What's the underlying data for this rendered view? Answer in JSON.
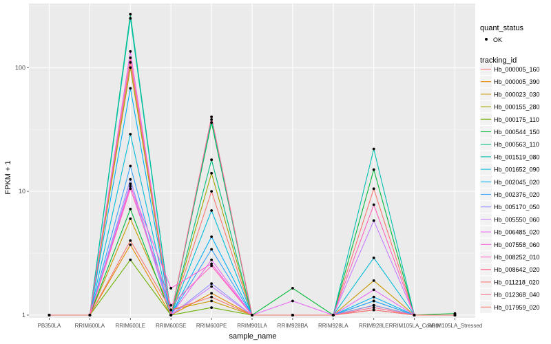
{
  "chart_data": {
    "type": "line",
    "title": "",
    "xlabel": "sample_name",
    "ylabel": "FPKM + 1",
    "y_scale": "log10",
    "ylim": [
      0.95,
      330
    ],
    "y_ticks": [
      1,
      10,
      100
    ],
    "y_tick_labels": [
      "1",
      "10",
      "100"
    ],
    "categories": [
      "PB350LA",
      "RRIM600LA",
      "RRIM600LE",
      "RRIM600SE",
      "RRIM600PE",
      "RRIM901LA",
      "RRIM928BA",
      "RRIM928LA",
      "RRIM928LE",
      "RRIM105LA_Control",
      "RRIM105LA_Stressed"
    ],
    "grid": true,
    "legend_placement": "right",
    "legend": {
      "shape_title": "quant_status",
      "shape_entries": [
        "OK"
      ],
      "color_title": "tracking_id"
    },
    "series": [
      {
        "name": "Hb_000005_160",
        "color": "#F8766D",
        "values": [
          1.0,
          1.0,
          110,
          1.0,
          10.0,
          1.0,
          1.0,
          1.0,
          10.5,
          1.0,
          1.0
        ]
      },
      {
        "name": "Hb_000005_390",
        "color": "#E58700",
        "values": [
          1.0,
          1.0,
          3.7,
          1.0,
          1.5,
          1.0,
          1.0,
          1.0,
          1.2,
          1.0,
          1.0
        ]
      },
      {
        "name": "Hb_000023_030",
        "color": "#C99800",
        "values": [
          1.0,
          1.0,
          6.0,
          1.1,
          1.3,
          1.0,
          1.0,
          1.0,
          1.9,
          1.0,
          1.0
        ]
      },
      {
        "name": "Hb_000155_280",
        "color": "#A3A500",
        "values": [
          1.0,
          1.0,
          100,
          1.0,
          14.0,
          1.0,
          1.0,
          1.0,
          1.2,
          1.0,
          1.0
        ]
      },
      {
        "name": "Hb_000175_110",
        "color": "#6BB100",
        "values": [
          1.0,
          1.0,
          2.8,
          1.0,
          1.15,
          1.0,
          1.0,
          1.0,
          1.1,
          1.0,
          1.0
        ]
      },
      {
        "name": "Hb_000544_150",
        "color": "#00BA38",
        "values": [
          1.0,
          1.0,
          7.2,
          1.0,
          36.0,
          1.0,
          1.65,
          1.0,
          15.0,
          1.0,
          1.03
        ]
      },
      {
        "name": "Hb_000563_110",
        "color": "#00BF7D",
        "values": [
          1.0,
          1.0,
          270,
          1.0,
          18.0,
          1.0,
          1.0,
          1.0,
          1.3,
          1.0,
          1.0
        ]
      },
      {
        "name": "Hb_001519_080",
        "color": "#00C0AF",
        "values": [
          1.0,
          1.0,
          250,
          1.0,
          38.0,
          1.0,
          1.0,
          1.0,
          22.0,
          1.0,
          1.0
        ]
      },
      {
        "name": "Hb_001652_090",
        "color": "#00BCD8",
        "values": [
          1.0,
          1.0,
          29.0,
          1.0,
          7.0,
          1.0,
          1.0,
          1.0,
          2.9,
          1.0,
          1.0
        ]
      },
      {
        "name": "Hb_002045_020",
        "color": "#00B0F6",
        "values": [
          1.0,
          1.0,
          68.0,
          1.0,
          4.3,
          1.0,
          1.0,
          1.0,
          1.4,
          1.0,
          1.0
        ]
      },
      {
        "name": "Hb_002376_020",
        "color": "#35A2FF",
        "values": [
          1.0,
          1.0,
          16.0,
          1.0,
          3.4,
          1.0,
          1.0,
          1.0,
          1.3,
          1.0,
          1.0
        ]
      },
      {
        "name": "Hb_005170_050",
        "color": "#9590FF",
        "values": [
          1.0,
          1.0,
          12.5,
          1.0,
          1.8,
          1.0,
          1.0,
          1.0,
          1.2,
          1.0,
          1.0
        ]
      },
      {
        "name": "Hb_005550_060",
        "color": "#C77CFF",
        "values": [
          1.0,
          1.0,
          11.5,
          1.0,
          1.7,
          1.0,
          1.0,
          1.0,
          5.8,
          1.0,
          1.0
        ]
      },
      {
        "name": "Hb_006485_020",
        "color": "#E76BF3",
        "values": [
          1.0,
          1.0,
          135,
          1.0,
          2.8,
          1.0,
          1.3,
          1.0,
          1.6,
          1.0,
          1.0
        ]
      },
      {
        "name": "Hb_007558_060",
        "color": "#FA62DB",
        "values": [
          1.0,
          1.0,
          11.0,
          1.65,
          2.6,
          1.0,
          1.0,
          1.0,
          1.1,
          1.0,
          1.0
        ]
      },
      {
        "name": "Hb_008252_010",
        "color": "#FF62BC",
        "values": [
          1.0,
          1.0,
          10.5,
          1.2,
          2.5,
          1.0,
          1.0,
          1.0,
          7.8,
          1.0,
          1.0
        ]
      },
      {
        "name": "Hb_008642_020",
        "color": "#FF6C91",
        "values": [
          1.0,
          1.0,
          120,
          1.0,
          40.0,
          1.0,
          1.0,
          1.0,
          1.15,
          1.0,
          1.0
        ]
      },
      {
        "name": "Hb_011218_020",
        "color": "#F8766D",
        "values": [
          1.0,
          1.0,
          4.0,
          1.1,
          1.4,
          1.0,
          1.0,
          1.0,
          1.1,
          1.0,
          1.0
        ]
      }
    ]
  },
  "legend_extra": {
    "extra_entries": [
      "Hb_012368_040",
      "Hb_017959_020"
    ],
    "extra_colors": [
      "#FF6C91",
      "#F8766D"
    ]
  }
}
